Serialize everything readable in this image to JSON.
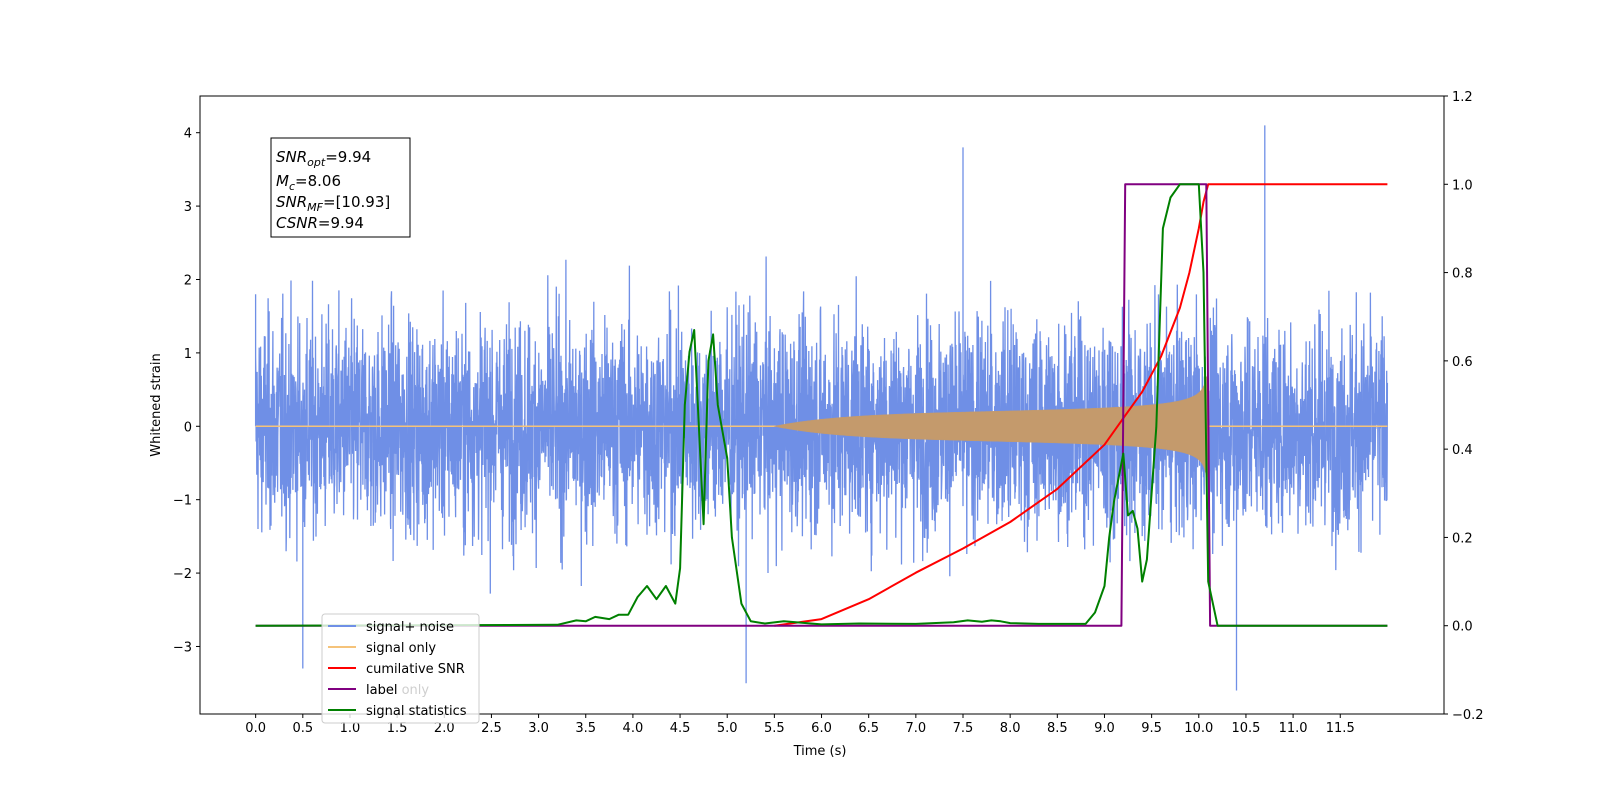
{
  "chart_data": {
    "type": "line",
    "xlabel": "Time (s)",
    "ylabel": "Whitened strain",
    "xlim": [
      -0.59,
      12.6
    ],
    "ylim": [
      -3.92,
      4.5
    ],
    "y2lim": [
      -0.2,
      1.2
    ],
    "x_ticks": [
      "0.0",
      "0.5",
      "1.0",
      "1.5",
      "2.0",
      "2.5",
      "3.0",
      "3.5",
      "4.0",
      "4.5",
      "5.0",
      "5.5",
      "6.0",
      "6.5",
      "7.0",
      "7.5",
      "8.0",
      "8.5",
      "9.0",
      "9.5",
      "10.0",
      "10.5",
      "11.0",
      "11.5"
    ],
    "y_ticks": [
      "−3",
      "−2",
      "−1",
      "0",
      "1",
      "2",
      "3",
      "4"
    ],
    "y2_ticks": [
      "−0.2",
      "0.0",
      "0.2",
      "0.4",
      "0.6",
      "0.8",
      "1.0",
      "1.2"
    ],
    "colors": {
      "signal_noise": "#6f8fe6",
      "signal_only": "#f5c37a",
      "signal_fill": "#c49a6c",
      "cumulative_snr": "#ff0000",
      "label": "#800080",
      "signal_statistics": "#008000"
    },
    "annotation": {
      "snr_opt": "9.94",
      "mc": "8.06",
      "snr_mf": "[10.93]",
      "csnr": "9.94"
    },
    "legend": {
      "placement": "lower-left",
      "entries": [
        "signal+ noise",
        "signal only",
        "cumilative SNR",
        "label",
        "signal statistics"
      ],
      "hidden_text": "label only"
    },
    "series": [
      {
        "name": "signal+ noise",
        "axis": "left",
        "description_range": [
          0.0,
          12.0
        ],
        "typical_amplitude": 2.3,
        "peak_values": [
          [
            0.0,
            1.8
          ],
          [
            7.5,
            3.8
          ],
          [
            10.7,
            4.1
          ],
          [
            5.2,
            -3.5
          ],
          [
            10.4,
            -3.6
          ],
          [
            0.5,
            -3.3
          ]
        ]
      },
      {
        "name": "signal only",
        "axis": "left",
        "chirp": {
          "start": 5.5,
          "merger": 10.1,
          "peak_amplitude": 0.7
        }
      },
      {
        "name": "cumilative SNR",
        "axis": "right",
        "x": [
          5.5,
          6.0,
          6.5,
          7.0,
          7.5,
          8.0,
          8.5,
          9.0,
          9.2,
          9.4,
          9.6,
          9.8,
          9.9,
          10.0,
          10.05,
          10.1,
          12.0
        ],
        "y": [
          0.0,
          0.015,
          0.06,
          0.12,
          0.175,
          0.235,
          0.31,
          0.41,
          0.47,
          0.53,
          0.61,
          0.72,
          0.8,
          0.9,
          0.96,
          1.0,
          1.0
        ]
      },
      {
        "name": "label",
        "axis": "right",
        "x": [
          0.0,
          9.18,
          9.22,
          10.08,
          10.12,
          12.0
        ],
        "y": [
          0.0,
          0.0,
          1.0,
          1.0,
          0.0,
          0.0
        ]
      },
      {
        "name": "signal statistics",
        "axis": "right",
        "x": [
          0.0,
          3.2,
          3.4,
          3.5,
          3.6,
          3.75,
          3.85,
          3.95,
          4.05,
          4.15,
          4.25,
          4.35,
          4.45,
          4.5,
          4.55,
          4.6,
          4.65,
          4.7,
          4.75,
          4.8,
          4.85,
          4.9,
          4.95,
          5.0,
          5.05,
          5.15,
          5.25,
          5.4,
          5.6,
          6.0,
          6.4,
          7.0,
          7.4,
          7.55,
          7.7,
          7.8,
          7.9,
          8.0,
          8.3,
          8.8,
          8.9,
          9.0,
          9.05,
          9.1,
          9.2,
          9.25,
          9.3,
          9.35,
          9.4,
          9.45,
          9.55,
          9.62,
          9.7,
          9.8,
          9.9,
          10.0,
          10.05,
          10.1,
          10.2,
          12.0
        ],
        "y": [
          0.0,
          0.002,
          0.012,
          0.01,
          0.02,
          0.015,
          0.025,
          0.025,
          0.065,
          0.09,
          0.06,
          0.09,
          0.05,
          0.13,
          0.5,
          0.62,
          0.67,
          0.45,
          0.23,
          0.6,
          0.66,
          0.5,
          0.44,
          0.38,
          0.2,
          0.05,
          0.01,
          0.005,
          0.01,
          0.003,
          0.005,
          0.004,
          0.008,
          0.012,
          0.009,
          0.012,
          0.01,
          0.006,
          0.004,
          0.004,
          0.03,
          0.09,
          0.2,
          0.28,
          0.39,
          0.25,
          0.26,
          0.22,
          0.1,
          0.15,
          0.45,
          0.9,
          0.97,
          1.0,
          1.0,
          1.0,
          0.8,
          0.1,
          0.0,
          0.0
        ]
      }
    ]
  }
}
